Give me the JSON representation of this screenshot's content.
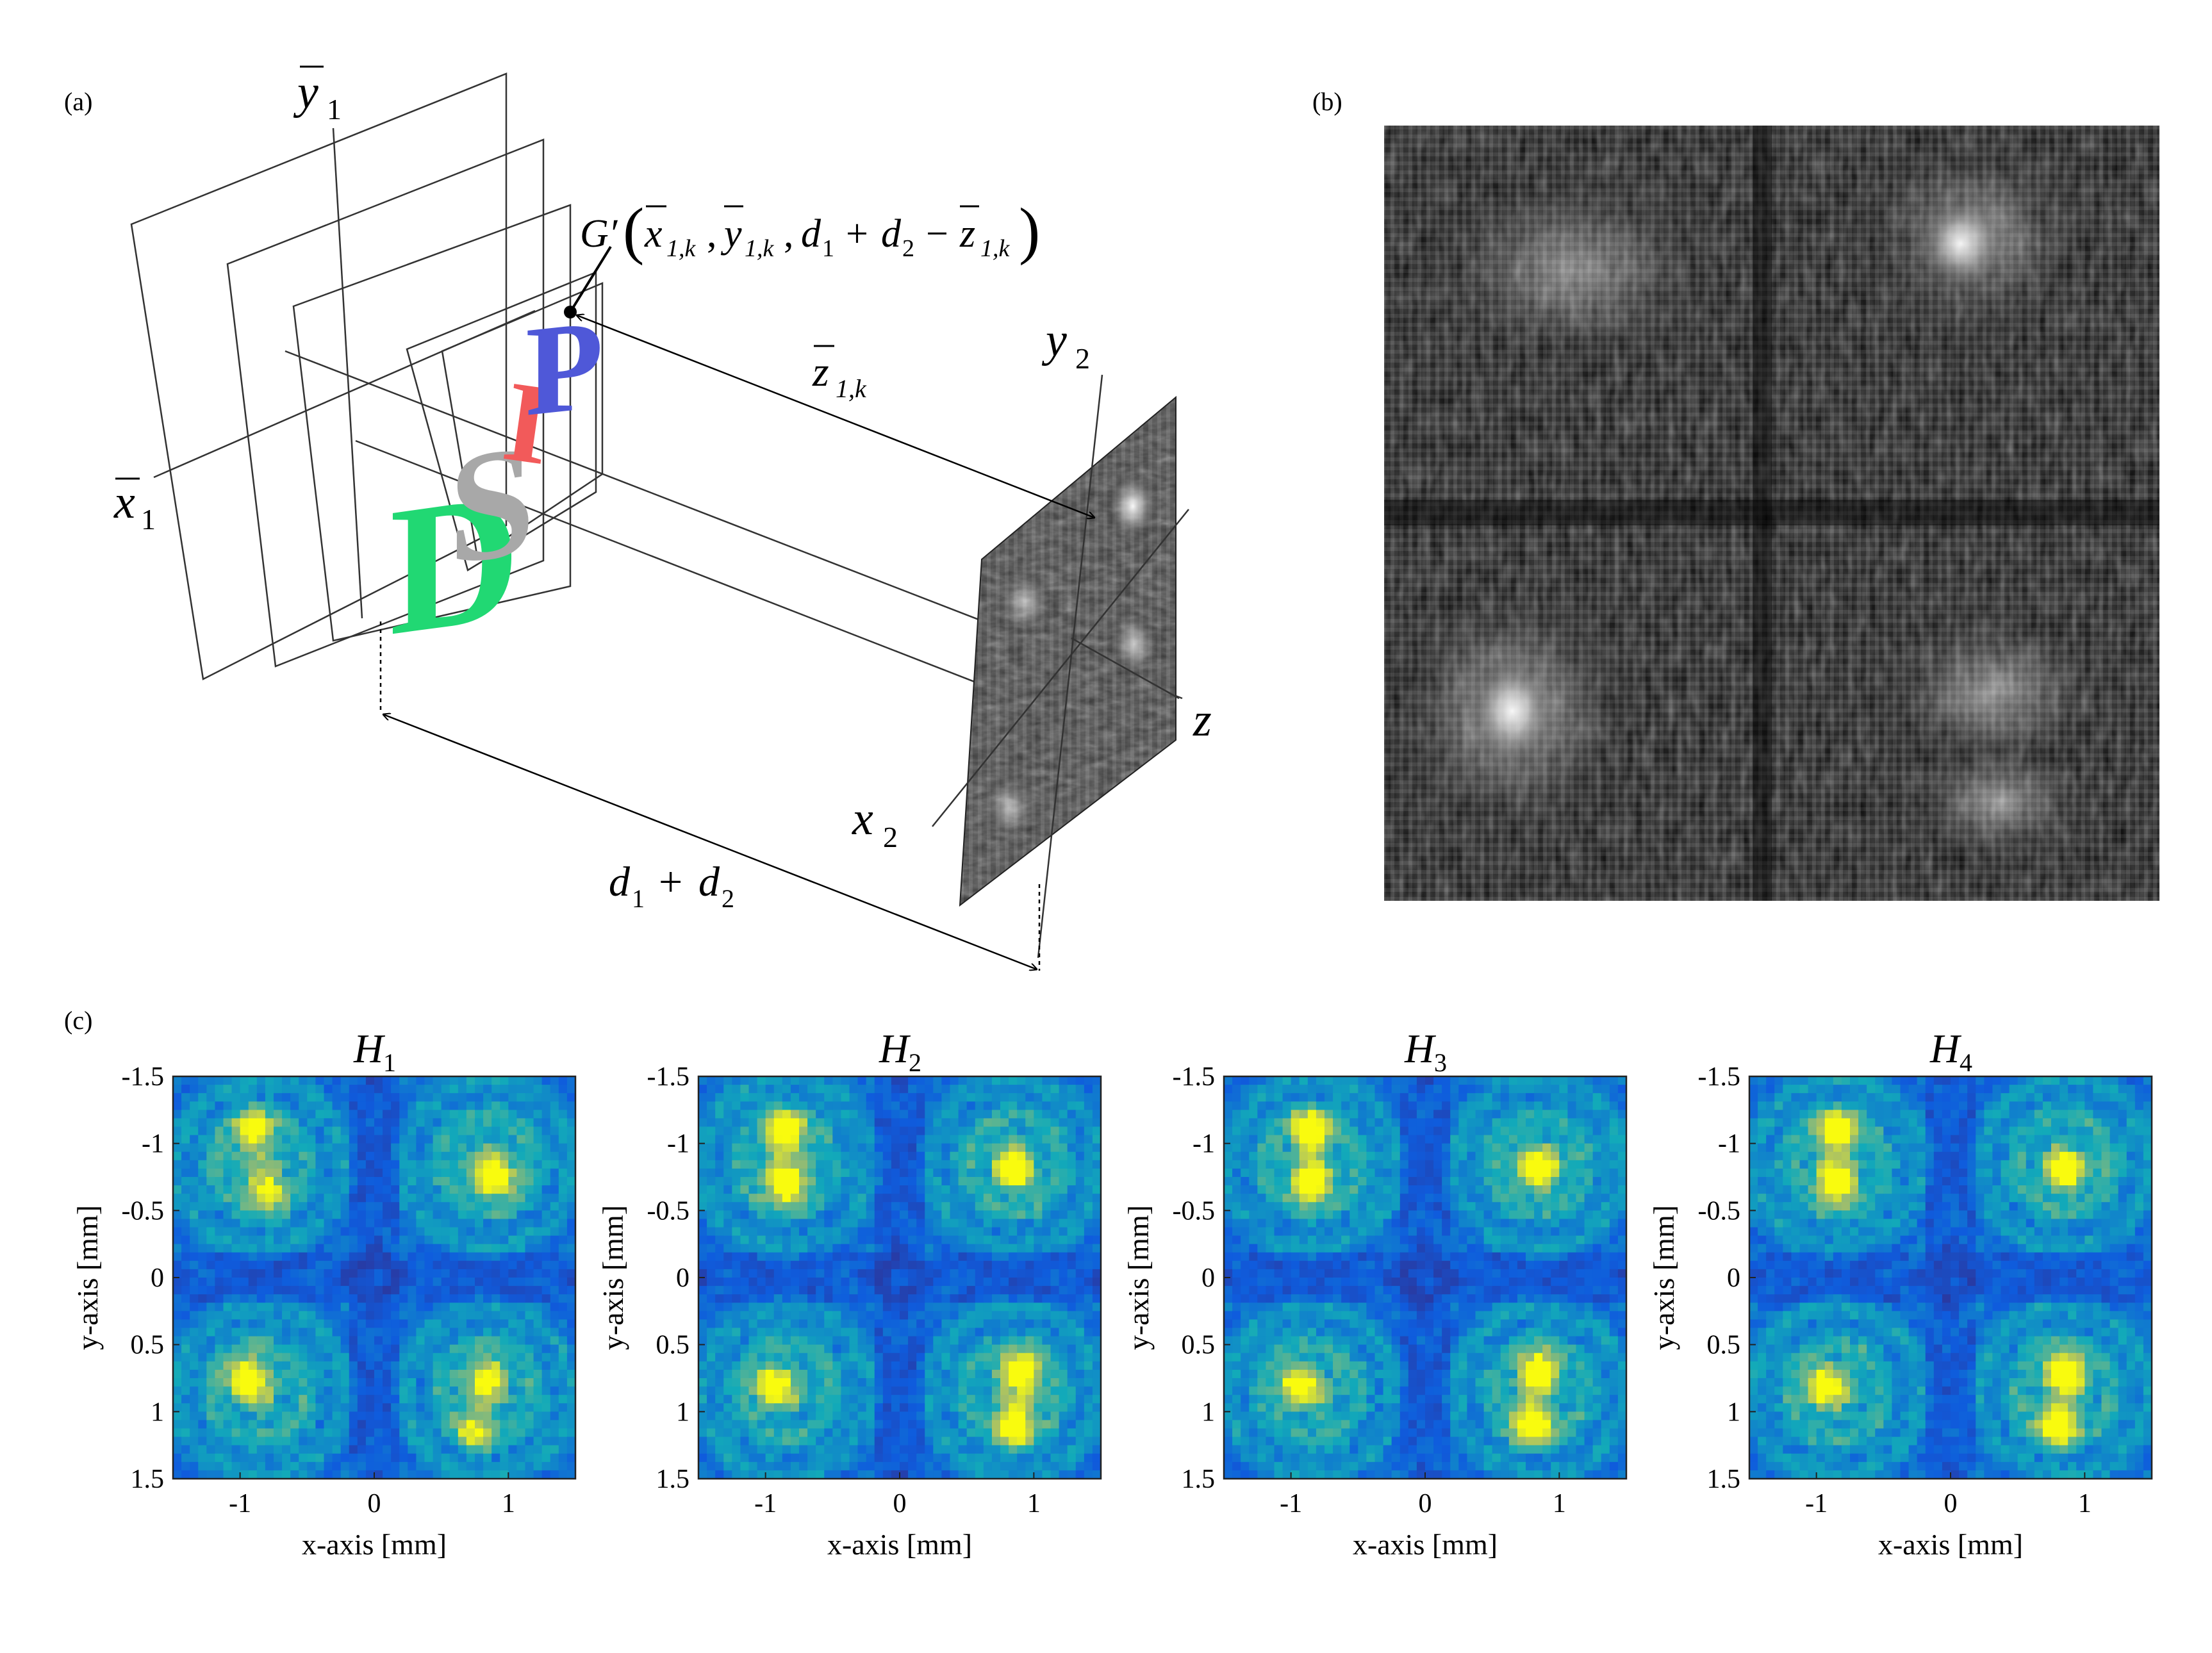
{
  "panel_labels": {
    "a": "(a)",
    "b": "(b)",
    "c": "(c)"
  },
  "diagram": {
    "axes": {
      "x1": {
        "sym": "x",
        "sub": "1"
      },
      "y1": {
        "sym": "y",
        "sub": "1"
      },
      "x2": {
        "sym": "x",
        "sub": "2"
      },
      "y2": {
        "sym": "y",
        "sub": "2"
      },
      "z": "z"
    },
    "letters": [
      {
        "char": "D",
        "color": "#21d873"
      },
      {
        "char": "S",
        "color": "#a8a8a8"
      },
      {
        "char": "I",
        "color": "#f25a5a"
      },
      {
        "char": "P",
        "color": "#4f58d8"
      }
    ],
    "point_label": {
      "G": "G′",
      "open": "(",
      "x": "x",
      "sep1": ",",
      "y": "y",
      "sep2": ",",
      "d1": "d",
      "plus": "+",
      "d2": "d",
      "minus": "−",
      "z": "z",
      "close": ")",
      "sub_1k": "1,k",
      "sub_1": "1",
      "sub_2": "2"
    },
    "distance_label": {
      "sym": "z",
      "sub": "1,k"
    },
    "sum_label": {
      "d1": "d",
      "sub1": "1",
      "plus": "+",
      "d2": "d",
      "sub2": "2"
    }
  },
  "chart_data": [
    {
      "type": "heatmap",
      "title": {
        "sym": "H",
        "sub": "1"
      },
      "xlabel": "x-axis [mm]",
      "ylabel": "y-axis [mm]",
      "xlim": [
        -1.5,
        1.5
      ],
      "ylim": [
        1.5,
        -1.5
      ],
      "xticks": [
        "-1",
        "0",
        "1"
      ],
      "yticks": [
        "-1.5",
        "-1",
        "-0.5",
        "0",
        "0.5",
        "1",
        "1.5"
      ],
      "colormap": "parula",
      "peaks": [
        {
          "x": -0.9,
          "y": -1.1,
          "v": 0.75
        },
        {
          "x": -0.8,
          "y": -0.65,
          "v": 0.6
        },
        {
          "x": 0.9,
          "y": -0.75,
          "v": 0.85
        },
        {
          "x": -0.95,
          "y": 0.75,
          "v": 0.9
        },
        {
          "x": 0.85,
          "y": 0.75,
          "v": 0.65
        },
        {
          "x": 0.75,
          "y": 1.15,
          "v": 0.55
        }
      ]
    },
    {
      "type": "heatmap",
      "title": {
        "sym": "H",
        "sub": "2"
      },
      "xlabel": "x-axis [mm]",
      "ylabel": "y-axis [mm]",
      "xlim": [
        -1.5,
        1.5
      ],
      "ylim": [
        1.5,
        -1.5
      ],
      "xticks": [
        "-1",
        "0",
        "1"
      ],
      "yticks": [
        "-1.5",
        "-1",
        "-0.5",
        "0",
        "0.5",
        "1",
        "1.5"
      ],
      "colormap": "parula",
      "peaks": [
        {
          "x": -0.85,
          "y": -1.1,
          "v": 1.0
        },
        {
          "x": -0.85,
          "y": -0.7,
          "v": 1.0
        },
        {
          "x": 0.85,
          "y": -0.8,
          "v": 0.8
        },
        {
          "x": -0.95,
          "y": 0.8,
          "v": 0.75
        },
        {
          "x": 0.9,
          "y": 0.7,
          "v": 1.0
        },
        {
          "x": 0.85,
          "y": 1.1,
          "v": 1.0
        }
      ]
    },
    {
      "type": "heatmap",
      "title": {
        "sym": "H",
        "sub": "3"
      },
      "xlabel": "x-axis [mm]",
      "ylabel": "y-axis [mm]",
      "xlim": [
        -1.5,
        1.5
      ],
      "ylim": [
        1.5,
        -1.5
      ],
      "xticks": [
        "-1",
        "0",
        "1"
      ],
      "yticks": [
        "-1.5",
        "-1",
        "-0.5",
        "0",
        "0.5",
        "1",
        "1.5"
      ],
      "colormap": "parula",
      "peaks": [
        {
          "x": -0.85,
          "y": -1.1,
          "v": 1.0
        },
        {
          "x": -0.85,
          "y": -0.7,
          "v": 1.0
        },
        {
          "x": 0.85,
          "y": -0.8,
          "v": 0.8
        },
        {
          "x": -0.95,
          "y": 0.8,
          "v": 0.75
        },
        {
          "x": 0.85,
          "y": 0.7,
          "v": 1.0
        },
        {
          "x": 0.8,
          "y": 1.1,
          "v": 1.0
        }
      ]
    },
    {
      "type": "heatmap",
      "title": {
        "sym": "H",
        "sub": "4"
      },
      "xlabel": "x-axis [mm]",
      "ylabel": "y-axis [mm]",
      "xlim": [
        -1.5,
        1.5
      ],
      "ylim": [
        1.5,
        -1.5
      ],
      "xticks": [
        "-1",
        "0",
        "1"
      ],
      "yticks": [
        "-1.5",
        "-1",
        "-0.5",
        "0",
        "0.5",
        "1",
        "1.5"
      ],
      "colormap": "parula",
      "peaks": [
        {
          "x": -0.85,
          "y": -1.1,
          "v": 1.0
        },
        {
          "x": -0.85,
          "y": -0.7,
          "v": 1.0
        },
        {
          "x": 0.85,
          "y": -0.8,
          "v": 0.8
        },
        {
          "x": -0.95,
          "y": 0.8,
          "v": 0.75
        },
        {
          "x": 0.85,
          "y": 0.7,
          "v": 1.0
        },
        {
          "x": 0.8,
          "y": 1.1,
          "v": 1.0
        }
      ]
    }
  ]
}
